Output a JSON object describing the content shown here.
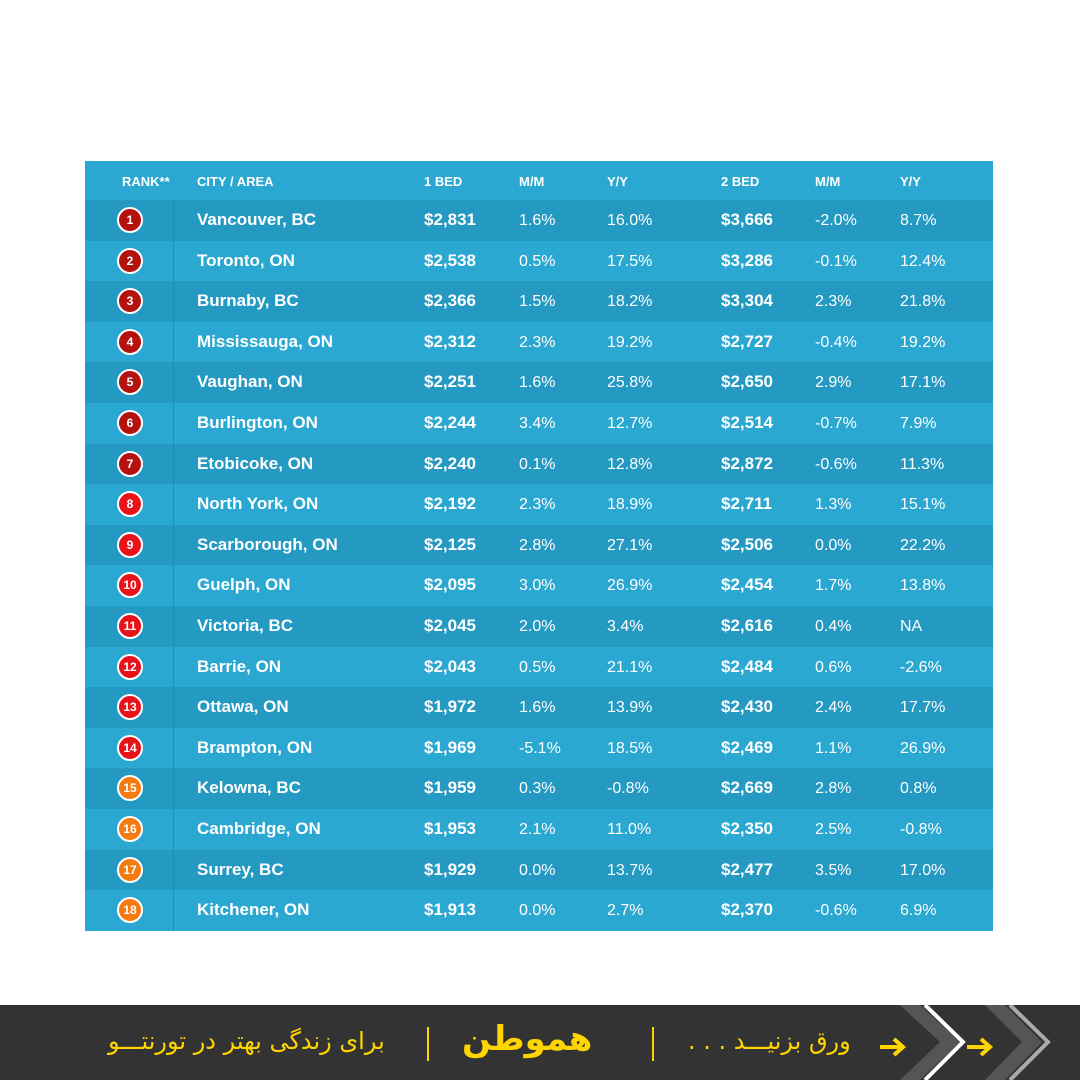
{
  "table": {
    "headers": {
      "rank": "RANK**",
      "city": "CITY / AREA",
      "bed1": "1 BED",
      "mm1": "M/M",
      "yy1": "Y/Y",
      "bed2": "2 BED",
      "mm2": "M/M",
      "yy2": "Y/Y"
    },
    "badge_colors": {
      "top": "#b3120f",
      "mid": "#e8121a",
      "low": "#f47a12"
    },
    "rows": [
      {
        "rank": "1",
        "city": "Vancouver, BC",
        "bed1": "$2,831",
        "mm1": "1.6%",
        "yy1": "16.0%",
        "bed2": "$3,666",
        "mm2": "-2.0%",
        "yy2": "8.7%"
      },
      {
        "rank": "2",
        "city": "Toronto, ON",
        "bed1": "$2,538",
        "mm1": "0.5%",
        "yy1": "17.5%",
        "bed2": "$3,286",
        "mm2": "-0.1%",
        "yy2": "12.4%"
      },
      {
        "rank": "3",
        "city": "Burnaby, BC",
        "bed1": "$2,366",
        "mm1": "1.5%",
        "yy1": "18.2%",
        "bed2": "$3,304",
        "mm2": "2.3%",
        "yy2": "21.8%"
      },
      {
        "rank": "4",
        "city": "Mississauga, ON",
        "bed1": "$2,312",
        "mm1": "2.3%",
        "yy1": "19.2%",
        "bed2": "$2,727",
        "mm2": "-0.4%",
        "yy2": "19.2%"
      },
      {
        "rank": "5",
        "city": "Vaughan, ON",
        "bed1": "$2,251",
        "mm1": "1.6%",
        "yy1": "25.8%",
        "bed2": "$2,650",
        "mm2": "2.9%",
        "yy2": "17.1%"
      },
      {
        "rank": "6",
        "city": "Burlington, ON",
        "bed1": "$2,244",
        "mm1": "3.4%",
        "yy1": "12.7%",
        "bed2": "$2,514",
        "mm2": "-0.7%",
        "yy2": "7.9%"
      },
      {
        "rank": "7",
        "city": "Etobicoke, ON",
        "bed1": "$2,240",
        "mm1": "0.1%",
        "yy1": "12.8%",
        "bed2": "$2,872",
        "mm2": "-0.6%",
        "yy2": "11.3%"
      },
      {
        "rank": "8",
        "city": "North York, ON",
        "bed1": "$2,192",
        "mm1": "2.3%",
        "yy1": "18.9%",
        "bed2": "$2,711",
        "mm2": "1.3%",
        "yy2": "15.1%"
      },
      {
        "rank": "9",
        "city": "Scarborough, ON",
        "bed1": "$2,125",
        "mm1": "2.8%",
        "yy1": "27.1%",
        "bed2": "$2,506",
        "mm2": "0.0%",
        "yy2": "22.2%"
      },
      {
        "rank": "10",
        "city": "Guelph, ON",
        "bed1": "$2,095",
        "mm1": "3.0%",
        "yy1": "26.9%",
        "bed2": "$2,454",
        "mm2": "1.7%",
        "yy2": "13.8%"
      },
      {
        "rank": "11",
        "city": "Victoria, BC",
        "bed1": "$2,045",
        "mm1": "2.0%",
        "yy1": "3.4%",
        "bed2": "$2,616",
        "mm2": "0.4%",
        "yy2": "NA"
      },
      {
        "rank": "12",
        "city": "Barrie, ON",
        "bed1": "$2,043",
        "mm1": "0.5%",
        "yy1": "21.1%",
        "bed2": "$2,484",
        "mm2": "0.6%",
        "yy2": "-2.6%"
      },
      {
        "rank": "13",
        "city": "Ottawa, ON",
        "bed1": "$1,972",
        "mm1": "1.6%",
        "yy1": "13.9%",
        "bed2": "$2,430",
        "mm2": "2.4%",
        "yy2": "17.7%"
      },
      {
        "rank": "14",
        "city": "Brampton, ON",
        "bed1": "$1,969",
        "mm1": "-5.1%",
        "yy1": "18.5%",
        "bed2": "$2,469",
        "mm2": "1.1%",
        "yy2": "26.9%"
      },
      {
        "rank": "15",
        "city": "Kelowna, BC",
        "bed1": "$1,959",
        "mm1": "0.3%",
        "yy1": "-0.8%",
        "bed2": "$2,669",
        "mm2": "2.8%",
        "yy2": "0.8%"
      },
      {
        "rank": "16",
        "city": "Cambridge, ON",
        "bed1": "$1,953",
        "mm1": "2.1%",
        "yy1": "11.0%",
        "bed2": "$2,350",
        "mm2": "2.5%",
        "yy2": "-0.8%"
      },
      {
        "rank": "17",
        "city": "Surrey, BC",
        "bed1": "$1,929",
        "mm1": "0.0%",
        "yy1": "13.7%",
        "bed2": "$2,477",
        "mm2": "3.5%",
        "yy2": "17.0%"
      },
      {
        "rank": "18",
        "city": "Kitchener, ON",
        "bed1": "$1,913",
        "mm1": "0.0%",
        "yy1": "2.7%",
        "bed2": "$2,370",
        "mm2": "-0.6%",
        "yy2": "6.9%"
      }
    ]
  },
  "footer": {
    "tagline": "برای زندگی بهتر در تورنتـــو",
    "logo": "هموطن",
    "swipe": "ورق بزنیـــد . . .",
    "accent": "#ffd500"
  }
}
